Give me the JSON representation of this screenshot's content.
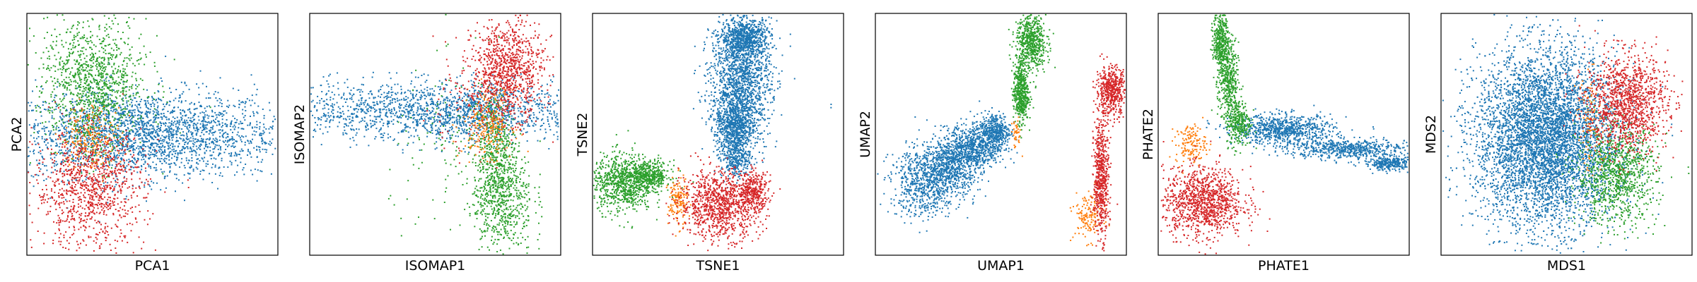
{
  "chart_data": [
    {
      "type": "scatter",
      "xlabel": "PCA1",
      "ylabel": "PCA2",
      "xticks": [],
      "yticks": [],
      "series": [
        {
          "color": "#1f77b4",
          "points": [
            [
              0.45,
              0.5,
              0.28,
              0.09,
              2600
            ]
          ]
        },
        {
          "color": "#2ca02c",
          "points": [
            [
              0.26,
              0.73,
              0.11,
              0.13,
              900
            ],
            [
              0.27,
              0.6,
              0.06,
              0.12,
              250
            ]
          ]
        },
        {
          "color": "#ff7f0e",
          "points": [
            [
              0.26,
              0.48,
              0.06,
              0.07,
              220
            ]
          ]
        },
        {
          "color": "#d62728",
          "points": [
            [
              0.25,
              0.27,
              0.11,
              0.12,
              1000
            ]
          ]
        }
      ]
    },
    {
      "type": "scatter",
      "xlabel": "ISOMAP1",
      "ylabel": "ISOMAP2",
      "xticks": [],
      "yticks": [],
      "series": [
        {
          "color": "#1f77b4",
          "points": [
            [
              0.5,
              0.6,
              0.38,
              0.06,
              1800
            ],
            [
              0.67,
              0.57,
              0.1,
              0.06,
              250
            ]
          ]
        },
        {
          "color": "#2ca02c",
          "points": [
            [
              0.74,
              0.4,
              0.04,
              0.14,
              500
            ],
            [
              0.77,
              0.23,
              0.06,
              0.12,
              500
            ],
            [
              0.6,
              0.4,
              0.14,
              0.18,
              140
            ]
          ]
        },
        {
          "color": "#ff7f0e",
          "points": [
            [
              0.71,
              0.55,
              0.05,
              0.07,
              250
            ]
          ]
        },
        {
          "color": "#d62728",
          "points": [
            [
              0.79,
              0.77,
              0.07,
              0.1,
              900
            ],
            [
              0.64,
              0.62,
              0.1,
              0.1,
              120
            ]
          ]
        }
      ]
    },
    {
      "type": "scatter",
      "xlabel": "TSNE1",
      "ylabel": "TSNE2",
      "xticks": [],
      "yticks": [],
      "series": [
        {
          "color": "#1f77b4",
          "points": [
            [
              0.61,
              0.9,
              0.05,
              0.04,
              700
            ],
            [
              0.59,
              0.72,
              0.06,
              0.12,
              1500
            ],
            [
              0.57,
              0.53,
              0.04,
              0.06,
              700
            ],
            [
              0.57,
              0.4,
              0.03,
              0.04,
              300
            ],
            [
              0.95,
              0.62,
              0.002,
              0.01,
              2
            ]
          ]
        },
        {
          "color": "#2ca02c",
          "points": [
            [
              0.12,
              0.3,
              0.06,
              0.06,
              800
            ],
            [
              0.23,
              0.33,
              0.04,
              0.03,
              400
            ]
          ]
        },
        {
          "color": "#ff7f0e",
          "points": [
            [
              0.34,
              0.22,
              0.02,
              0.05,
              150
            ]
          ]
        },
        {
          "color": "#d62728",
          "points": [
            [
              0.51,
              0.21,
              0.08,
              0.07,
              1000
            ],
            [
              0.64,
              0.26,
              0.03,
              0.04,
              300
            ]
          ]
        }
      ]
    },
    {
      "type": "scatter",
      "xlabel": "UMAP1",
      "ylabel": "UMAP2",
      "xticks": [],
      "yticks": [],
      "series": [
        {
          "color": "#1f77b4",
          "points": [
            [
              0.2,
              0.3,
              0.07,
              0.07,
              700
            ],
            [
              0.3,
              0.38,
              0.06,
              0.06,
              700
            ],
            [
              0.4,
              0.45,
              0.05,
              0.05,
              600
            ],
            [
              0.48,
              0.51,
              0.03,
              0.04,
              400
            ]
          ]
        },
        {
          "color": "#2ca02c",
          "points": [
            [
              0.58,
              0.67,
              0.015,
              0.06,
              500
            ],
            [
              0.62,
              0.88,
              0.03,
              0.06,
              600
            ]
          ]
        },
        {
          "color": "#ff7f0e",
          "points": [
            [
              0.85,
              0.16,
              0.03,
              0.05,
              150
            ],
            [
              0.56,
              0.5,
              0.01,
              0.03,
              40
            ]
          ]
        },
        {
          "color": "#d62728",
          "points": [
            [
              0.9,
              0.32,
              0.015,
              0.12,
              600
            ],
            [
              0.94,
              0.68,
              0.03,
              0.05,
              500
            ]
          ]
        }
      ]
    },
    {
      "type": "scatter",
      "xlabel": "PHATE1",
      "ylabel": "PHATE2",
      "xticks": [],
      "yticks": [],
      "series": [
        {
          "color": "#1f77b4",
          "points": [
            [
              0.5,
              0.52,
              0.1,
              0.03,
              800
            ],
            [
              0.75,
              0.44,
              0.12,
              0.02,
              600
            ],
            [
              0.92,
              0.38,
              0.05,
              0.015,
              300
            ]
          ]
        },
        {
          "color": "#2ca02c",
          "points": [
            [
              0.25,
              0.89,
              0.015,
              0.06,
              400
            ],
            [
              0.28,
              0.72,
              0.02,
              0.08,
              400
            ],
            [
              0.32,
              0.55,
              0.025,
              0.05,
              300
            ]
          ]
        },
        {
          "color": "#ff7f0e",
          "points": [
            [
              0.13,
              0.46,
              0.03,
              0.04,
              150
            ]
          ]
        },
        {
          "color": "#d62728",
          "points": [
            [
              0.18,
              0.22,
              0.08,
              0.07,
              1100
            ]
          ]
        }
      ]
    },
    {
      "type": "scatter",
      "xlabel": "MDS1",
      "ylabel": "MDS2",
      "xticks": [],
      "yticks": [],
      "series": [
        {
          "color": "#1f77b4",
          "points": [
            [
              0.42,
              0.48,
              0.14,
              0.18,
              6000
            ]
          ]
        },
        {
          "color": "#2ca02c",
          "points": [
            [
              0.7,
              0.33,
              0.08,
              0.1,
              1000
            ]
          ]
        },
        {
          "color": "#ff7f0e",
          "points": [
            [
              0.6,
              0.55,
              0.03,
              0.1,
              100
            ]
          ]
        },
        {
          "color": "#d62728",
          "points": [
            [
              0.74,
              0.63,
              0.08,
              0.1,
              1200
            ]
          ]
        }
      ]
    }
  ]
}
